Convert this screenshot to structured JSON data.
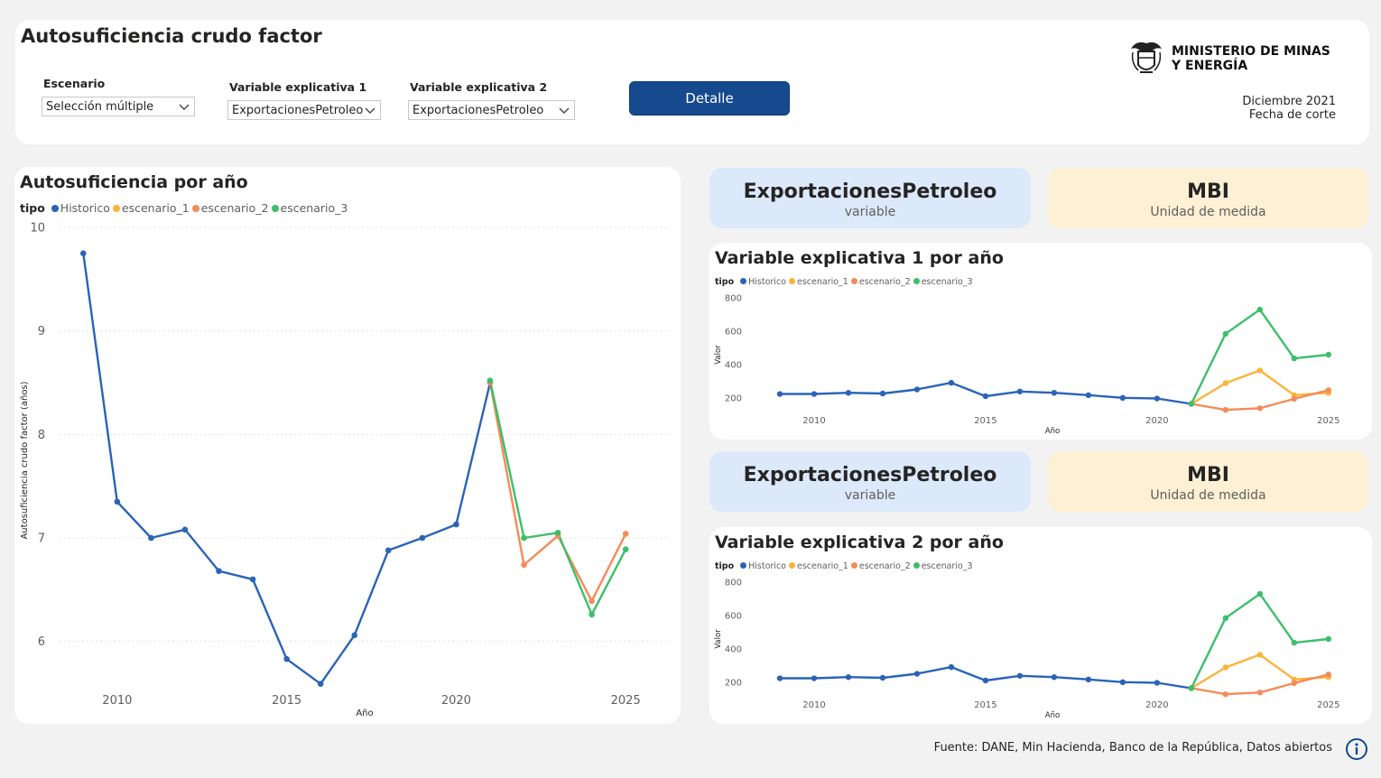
{
  "header": {
    "title": "Autosuficiencia crudo factor",
    "filters": [
      {
        "label": "Escenario",
        "value": "Selección múltiple"
      },
      {
        "label": "Variable explicativa 1",
        "value": "ExportacionesPetroleo"
      },
      {
        "label": "Variable explicativa 2",
        "value": "ExportacionesPetroleo"
      }
    ],
    "detail_button": "Detalle",
    "logo_line1": "MINISTERIO DE MINAS",
    "logo_line2": "Y ENERGÍA",
    "cut_date": "Diciembre 2021",
    "cut_date_label": "Fecha de corte"
  },
  "kpi1": {
    "value": "ExportacionesPetroleo",
    "label": "variable"
  },
  "kpi2": {
    "value": "MBI",
    "label": "Unidad de medida"
  },
  "kpi3": {
    "value": "ExportacionesPetroleo",
    "label": "variable"
  },
  "kpi4": {
    "value": "MBI",
    "label": "Unidad de medida"
  },
  "footer": {
    "source": "Fuente:  DANE,  Min Hacienda,  Banco de la República, Datos abiertos"
  },
  "colors": {
    "Historico": "#2a63b8",
    "escenario_1": "#fbb33a",
    "escenario_2": "#f58a5a",
    "escenario_3": "#3cbf6a",
    "button": "#154a8f",
    "kpi_blue": "#dbe9fb",
    "kpi_yellow": "#fdf0d4"
  },
  "icons": {
    "dropdown": "chevron-down-icon",
    "info": "info-circle-icon",
    "logo": "coat-of-arms-icon"
  },
  "chart_data": [
    {
      "type": "line",
      "title": "Autosuficiencia por año",
      "legend_title": "tipo",
      "legend_position": "top-left",
      "legend": [
        "Historico",
        "escenario_1",
        "escenario_2",
        "escenario_3"
      ],
      "xlabel": "Año",
      "ylabel": "Autosuficiencia crudo factor (años)",
      "xlim": [
        2008.3,
        2026.3
      ],
      "ylim": [
        5.5,
        10
      ],
      "xticks": [
        2010,
        2015,
        2020,
        2025
      ],
      "yticks": [
        6,
        7,
        8,
        9,
        10
      ],
      "grid": true,
      "series": [
        {
          "name": "Historico",
          "x": [
            2009,
            2010,
            2011,
            2012,
            2013,
            2014,
            2015,
            2016,
            2017,
            2018,
            2019,
            2020,
            2021
          ],
          "y": [
            9.75,
            7.35,
            7.0,
            7.08,
            6.68,
            6.6,
            5.83,
            5.59,
            6.06,
            6.88,
            7.0,
            7.13,
            8.5
          ]
        },
        {
          "name": "escenario_2",
          "x": [
            2021,
            2022,
            2023,
            2024,
            2025
          ],
          "y": [
            8.5,
            6.74,
            7.02,
            6.39,
            7.04
          ]
        },
        {
          "name": "escenario_3",
          "x": [
            2021,
            2022,
            2023,
            2024,
            2025
          ],
          "y": [
            8.52,
            7.0,
            7.05,
            6.26,
            6.89
          ]
        }
      ]
    },
    {
      "type": "line",
      "title": "Variable explicativa 1 por año",
      "legend_title": "tipo",
      "legend_position": "top-left",
      "legend": [
        "Historico",
        "escenario_1",
        "escenario_2",
        "escenario_3"
      ],
      "xlabel": "Año",
      "ylabel": "Valor",
      "xlim": [
        2008,
        2025.9
      ],
      "ylim": [
        120,
        800
      ],
      "xticks": [
        2010,
        2015,
        2020,
        2025
      ],
      "yticks": [
        200,
        400,
        600,
        800
      ],
      "grid": false,
      "series": [
        {
          "name": "Historico",
          "x": [
            2009,
            2010,
            2011,
            2012,
            2013,
            2014,
            2015,
            2016,
            2017,
            2018,
            2019,
            2020,
            2021
          ],
          "y": [
            225,
            225,
            232,
            228,
            252,
            292,
            212,
            240,
            232,
            218,
            202,
            198,
            166
          ]
        },
        {
          "name": "escenario_1",
          "x": [
            2021,
            2022,
            2023,
            2024,
            2025
          ],
          "y": [
            166,
            290,
            366,
            218,
            232
          ]
        },
        {
          "name": "escenario_2",
          "x": [
            2021,
            2022,
            2023,
            2024,
            2025
          ],
          "y": [
            166,
            130,
            140,
            196,
            248
          ]
        },
        {
          "name": "escenario_3",
          "x": [
            2021,
            2022,
            2023,
            2024,
            2025
          ],
          "y": [
            166,
            585,
            730,
            438,
            460
          ]
        }
      ]
    },
    {
      "type": "line",
      "title": "Variable explicativa 2 por año",
      "legend_title": "tipo",
      "legend_position": "top-left",
      "legend": [
        "Historico",
        "escenario_1",
        "escenario_2",
        "escenario_3"
      ],
      "xlabel": "Año",
      "ylabel": "Valor",
      "xlim": [
        2008,
        2025.9
      ],
      "ylim": [
        120,
        800
      ],
      "xticks": [
        2010,
        2015,
        2020,
        2025
      ],
      "yticks": [
        200,
        400,
        600,
        800
      ],
      "grid": false,
      "series": [
        {
          "name": "Historico",
          "x": [
            2009,
            2010,
            2011,
            2012,
            2013,
            2014,
            2015,
            2016,
            2017,
            2018,
            2019,
            2020,
            2021
          ],
          "y": [
            225,
            225,
            232,
            228,
            252,
            292,
            212,
            240,
            232,
            218,
            202,
            198,
            166
          ]
        },
        {
          "name": "escenario_1",
          "x": [
            2021,
            2022,
            2023,
            2024,
            2025
          ],
          "y": [
            166,
            290,
            366,
            218,
            232
          ]
        },
        {
          "name": "escenario_2",
          "x": [
            2021,
            2022,
            2023,
            2024,
            2025
          ],
          "y": [
            166,
            130,
            140,
            196,
            248
          ]
        },
        {
          "name": "escenario_3",
          "x": [
            2021,
            2022,
            2023,
            2024,
            2025
          ],
          "y": [
            166,
            585,
            730,
            438,
            460
          ]
        }
      ]
    }
  ]
}
